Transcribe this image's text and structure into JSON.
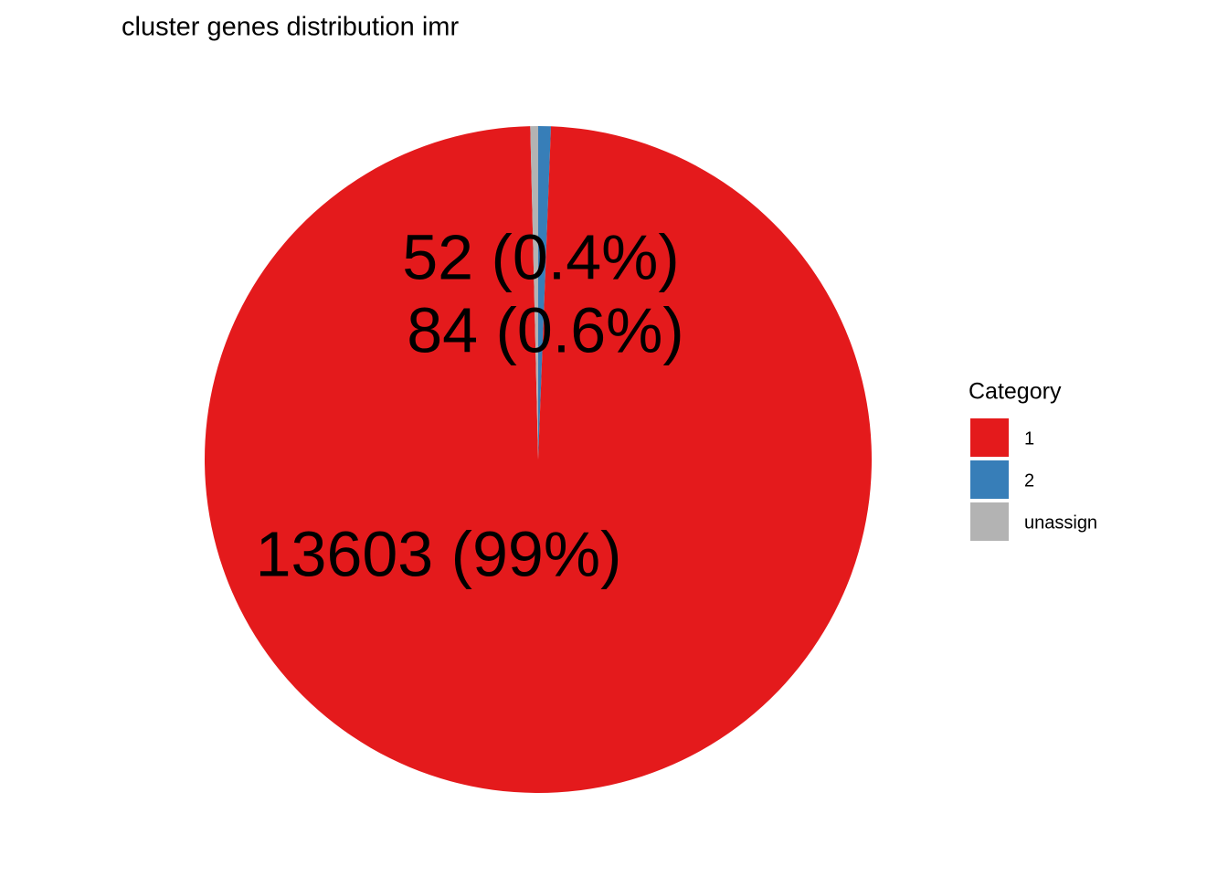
{
  "chart_data": {
    "type": "pie",
    "title": "cluster genes distribution imr",
    "legend_title": "Category",
    "categories": [
      "1",
      "2",
      "unassign"
    ],
    "values": [
      13603,
      84,
      52
    ],
    "value_labels": [
      "13603 (99%)",
      "84 (0.6%)",
      "52 (0.4%)"
    ],
    "colors": [
      "#e41a1c",
      "#377eb8",
      "#b3b3b3"
    ],
    "legend": "right"
  }
}
